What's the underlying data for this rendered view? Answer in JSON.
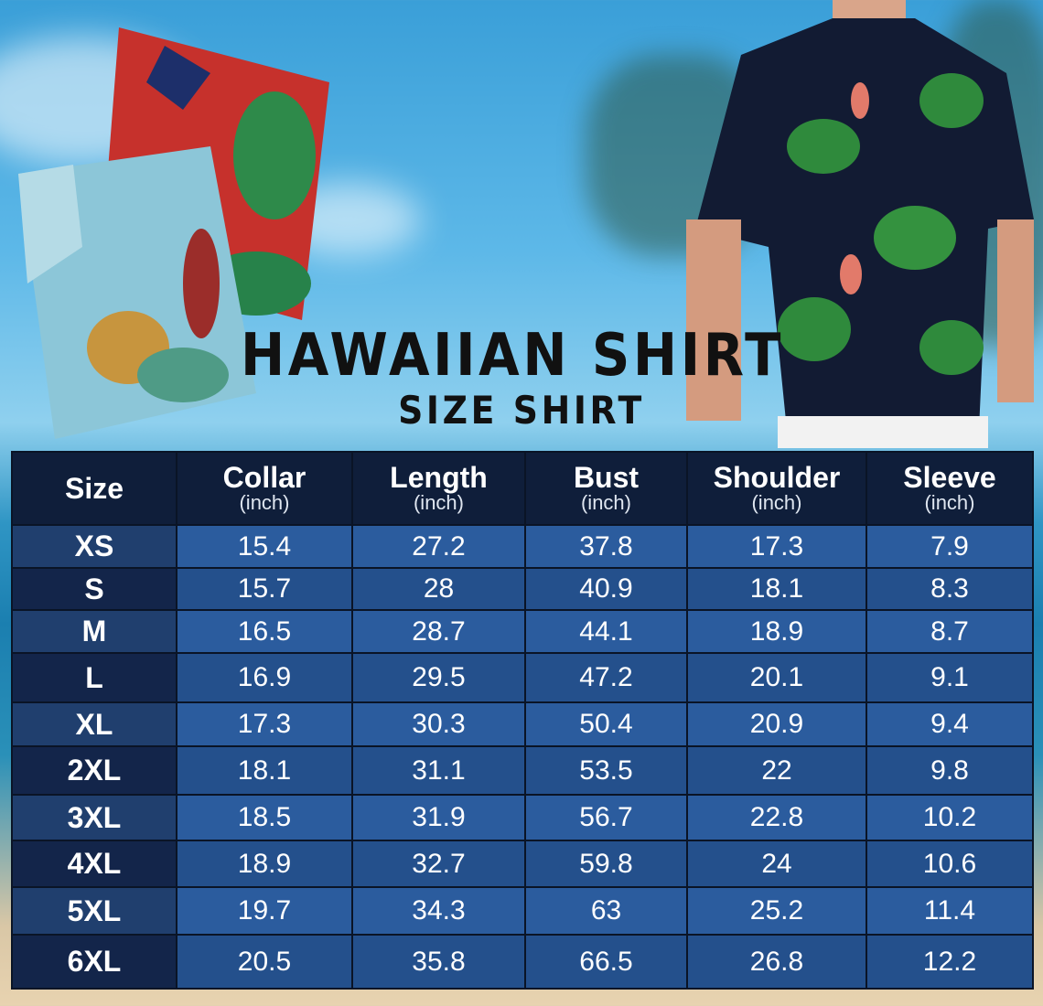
{
  "title": "HAWAIIAN SHIRT",
  "subtitle": "SIZE SHIRT",
  "table": {
    "headers": [
      {
        "label": "Size",
        "unit": ""
      },
      {
        "label": "Collar",
        "unit": "(inch)"
      },
      {
        "label": "Length",
        "unit": "(inch)"
      },
      {
        "label": "Bust",
        "unit": "(inch)"
      },
      {
        "label": "Shoulder",
        "unit": "(inch)"
      },
      {
        "label": "Sleeve",
        "unit": "(inch)"
      }
    ],
    "rows": [
      [
        "XS",
        "15.4",
        "27.2",
        "37.8",
        "17.3",
        "7.9"
      ],
      [
        "S",
        "15.7",
        "28",
        "40.9",
        "18.1",
        "8.3"
      ],
      [
        "M",
        "16.5",
        "28.7",
        "44.1",
        "18.9",
        "8.7"
      ],
      [
        "L",
        "16.9",
        "29.5",
        "47.2",
        "20.1",
        "9.1"
      ],
      [
        "XL",
        "17.3",
        "30.3",
        "50.4",
        "20.9",
        "9.4"
      ],
      [
        "2XL",
        "18.1",
        "31.1",
        "53.5",
        "22",
        "9.8"
      ],
      [
        "3XL",
        "18.5",
        "31.9",
        "56.7",
        "22.8",
        "10.2"
      ],
      [
        "4XL",
        "18.9",
        "32.7",
        "59.8",
        "24",
        "10.6"
      ],
      [
        "5XL",
        "19.7",
        "34.3",
        "63",
        "25.2",
        "11.4"
      ],
      [
        "6XL",
        "20.5",
        "35.8",
        "66.5",
        "26.8",
        "12.2"
      ]
    ]
  },
  "colors": {
    "header": "#0f1e3a",
    "row_light": "#2b5c9e",
    "row_dark": "#24508c"
  }
}
